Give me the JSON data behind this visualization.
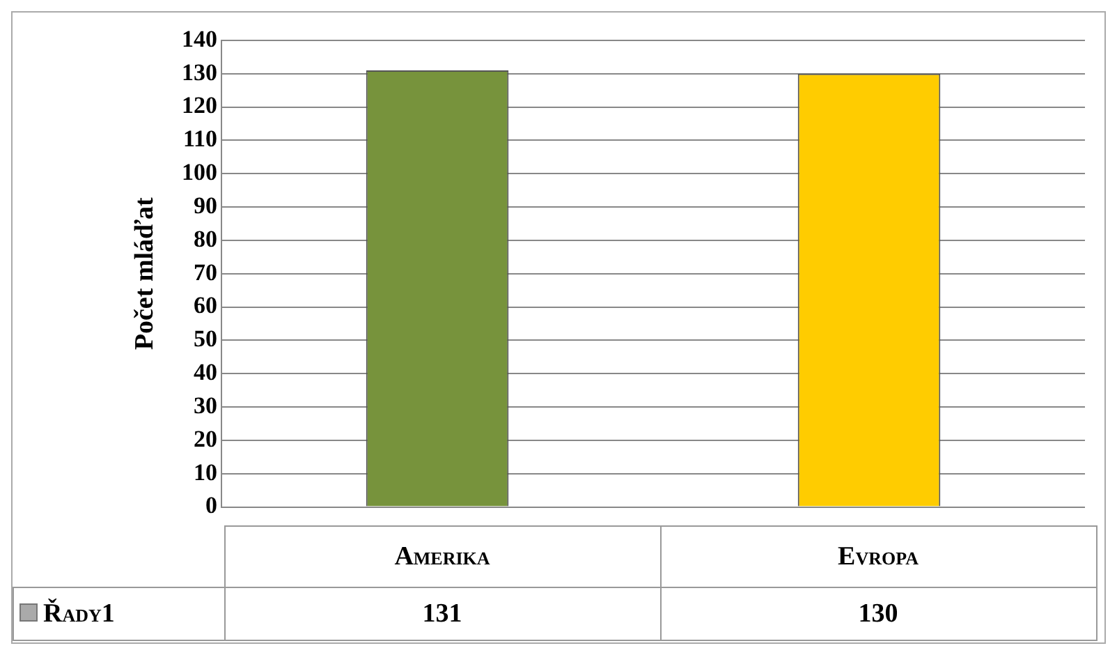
{
  "chart_data": {
    "type": "bar",
    "ylabel": "Počet mláďat",
    "categories": [
      "Amerika",
      "Evropa"
    ],
    "series": [
      {
        "name": "Řady1",
        "colors": [
          "#77933c",
          "#ffcc00"
        ],
        "values": [
          131,
          130
        ]
      }
    ],
    "ylim": [
      0,
      140
    ],
    "yticks": [
      0,
      10,
      20,
      30,
      40,
      50,
      60,
      70,
      80,
      90,
      100,
      110,
      120,
      130,
      140
    ],
    "grid": "y",
    "data_labels": true,
    "legend": "bottom"
  }
}
